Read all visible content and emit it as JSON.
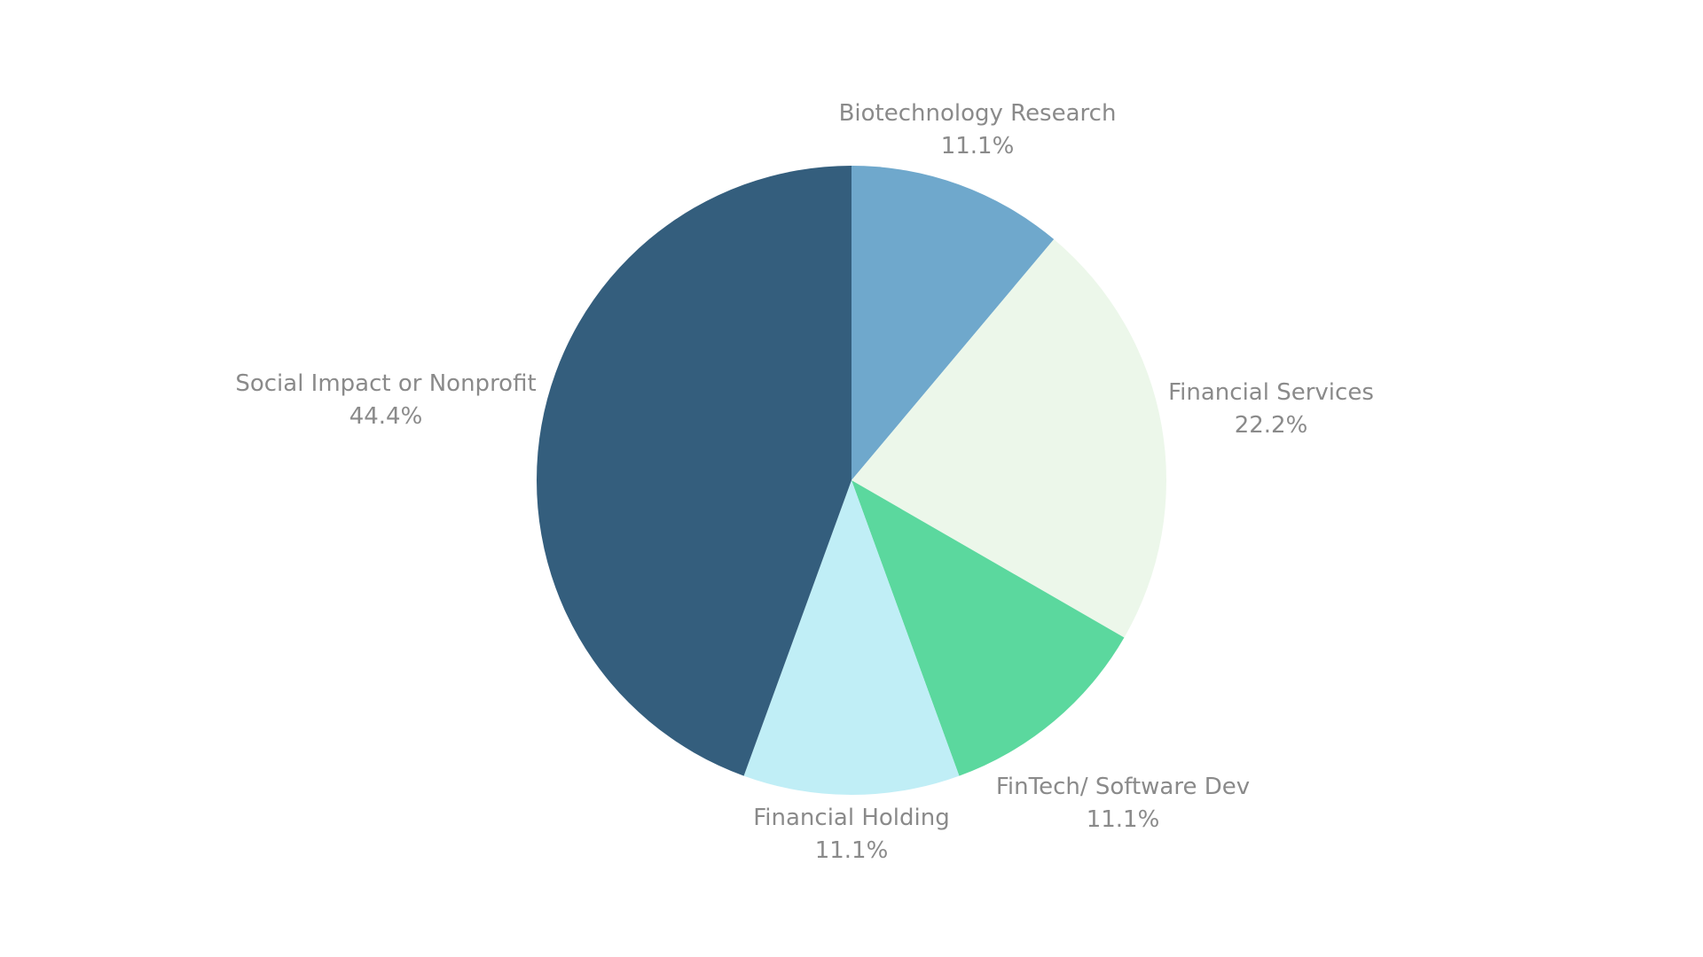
{
  "chart_data": {
    "type": "pie",
    "title": "",
    "slices": [
      {
        "label": "Biotechnology Research",
        "value": 11.1,
        "value_label": "11.1%",
        "color": "#6fa8cc"
      },
      {
        "label": "Financial Services",
        "value": 22.2,
        "value_label": "22.2%",
        "color": "#ecf7ea"
      },
      {
        "label": "FinTech/ Software Dev",
        "value": 11.1,
        "value_label": "11.1%",
        "color": "#5bd89e"
      },
      {
        "label": "Financial Holding",
        "value": 11.1,
        "value_label": "11.1%",
        "color": "#c0eef6"
      },
      {
        "label": "Social Impact or Nonprofit",
        "value": 44.4,
        "value_label": "44.4%",
        "color": "#345e7d"
      }
    ],
    "start": "12 o'clock",
    "direction": "clockwise",
    "legend": "none",
    "label_color": "#8a8a8a"
  }
}
